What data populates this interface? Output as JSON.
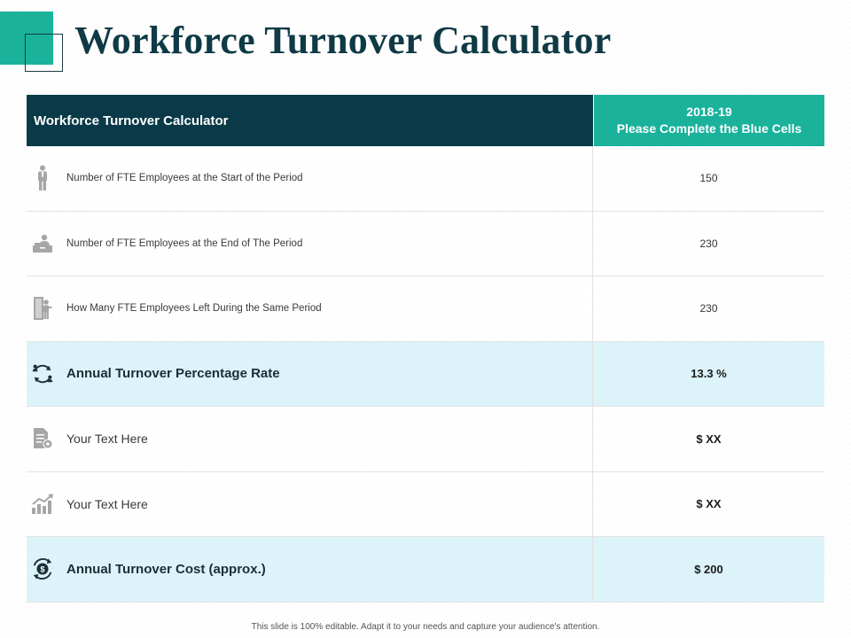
{
  "page": {
    "title": "Workforce Turnover Calculator",
    "footer_note": "This slide is 100% editable. Adapt it to your needs and capture your audience's attention."
  },
  "table": {
    "header_left": "Workforce Turnover Calculator",
    "header_right_line1": "2018-19",
    "header_right_line2": "Please Complete the Blue Cells",
    "rows": [
      {
        "icon": "standing-person-icon",
        "label": "Number of FTE Employees at the Start of the Period",
        "value": "150"
      },
      {
        "icon": "person-at-desk-icon",
        "label": "Number of FTE Employees at the End of The Period",
        "value": "230"
      },
      {
        "icon": "person-exit-door-icon",
        "label": "How Many FTE Employees Left During the Same Period",
        "value": "230"
      },
      {
        "icon": "people-cycle-icon",
        "label": "Annual Turnover Percentage Rate",
        "value": "13.3 %"
      },
      {
        "icon": "document-gear-icon",
        "label": "Your Text Here",
        "value": "$ XX"
      },
      {
        "icon": "growth-chart-icon",
        "label": "Your Text Here",
        "value": "$ XX"
      },
      {
        "icon": "dollar-cycle-icon",
        "label": "Annual Turnover Cost (approx.)",
        "value": "$ 200"
      }
    ]
  },
  "colors": {
    "teal": "#1ab29b",
    "navy": "#0a3a47",
    "highlight_row": "#dcf3f9",
    "icon_grey": "#a6a6a6"
  }
}
